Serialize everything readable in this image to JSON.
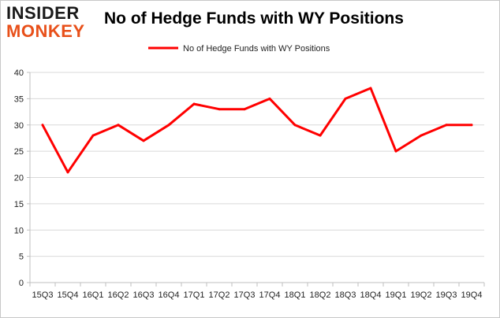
{
  "logo": {
    "top": "INSIDER",
    "bottom": "MONKEY"
  },
  "chart_data": {
    "type": "line",
    "title": "No of Hedge Funds with WY Positions",
    "xlabel": "",
    "ylabel": "",
    "categories": [
      "15Q3",
      "15Q4",
      "16Q1",
      "16Q2",
      "16Q3",
      "16Q4",
      "17Q1",
      "17Q2",
      "17Q3",
      "17Q4",
      "18Q1",
      "18Q2",
      "18Q3",
      "18Q4",
      "19Q1",
      "19Q2",
      "19Q3",
      "19Q4"
    ],
    "series": [
      {
        "name": "No of Hedge Funds with WY Positions",
        "values": [
          30,
          21,
          28,
          30,
          27,
          30,
          34,
          33,
          33,
          35,
          30,
          28,
          35,
          37,
          25,
          28,
          30,
          30
        ]
      }
    ],
    "ylim": [
      0,
      40
    ],
    "yticks": [
      0,
      5,
      10,
      15,
      20,
      25,
      30,
      35,
      40
    ],
    "grid": true,
    "legend": "top",
    "line_color": "#ff0000",
    "grid_color": "#d9d9d9"
  }
}
